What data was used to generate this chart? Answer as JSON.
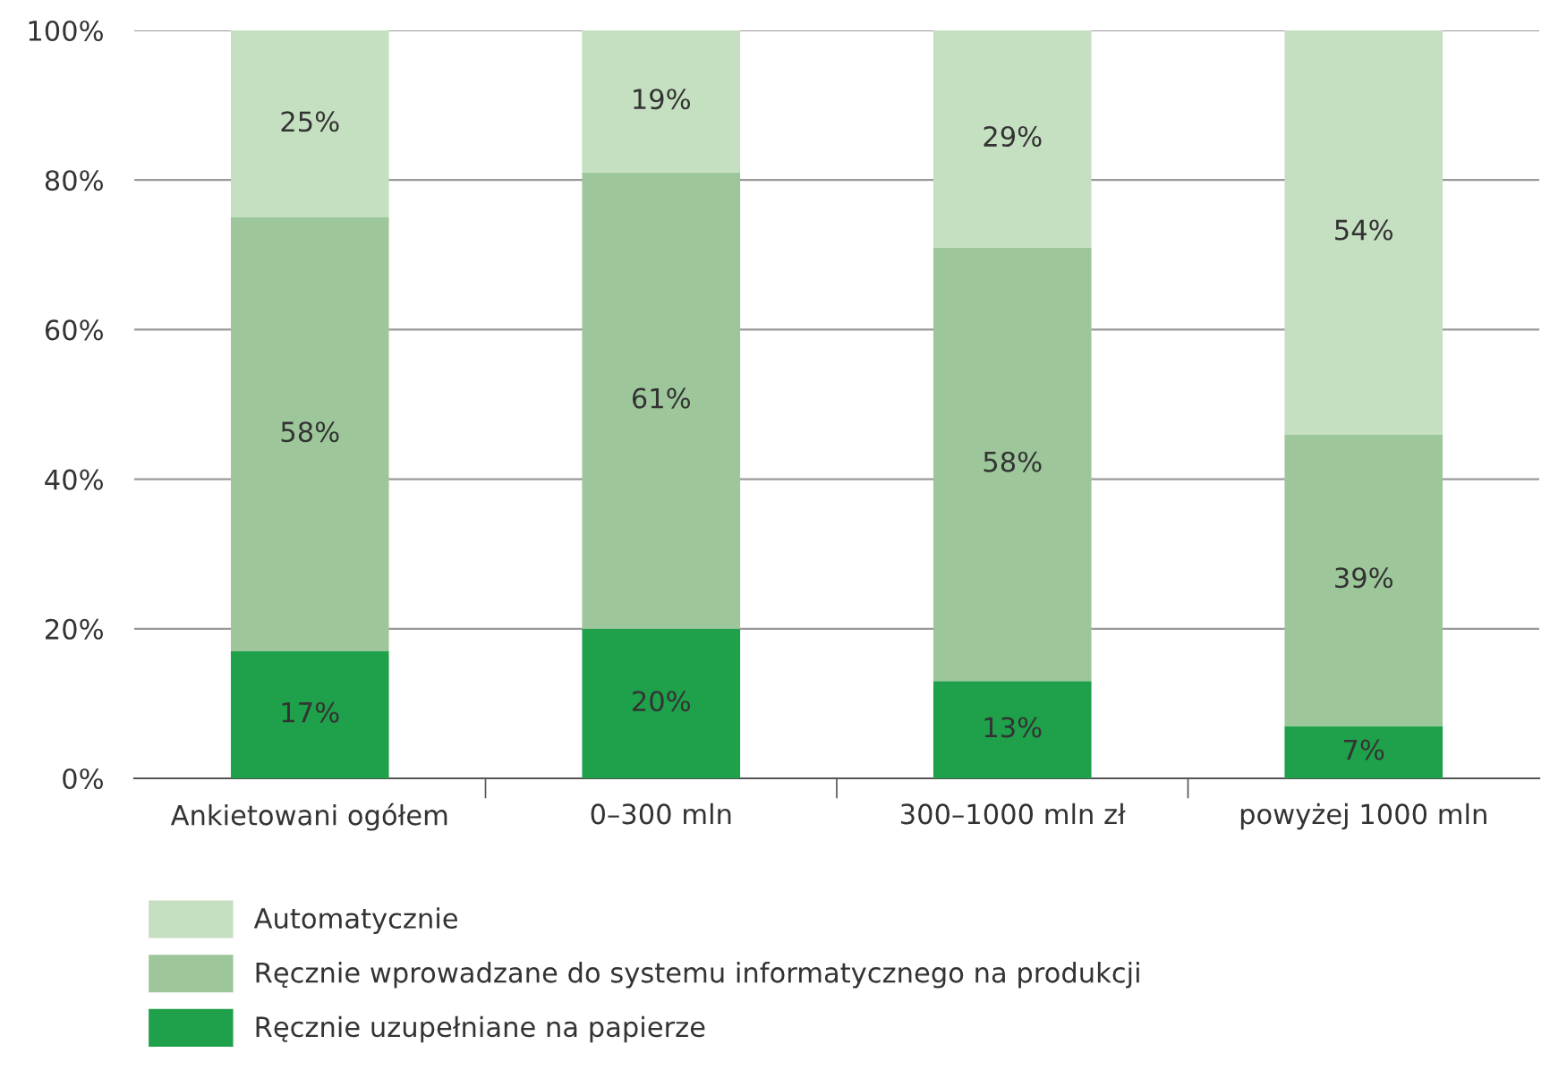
{
  "chart_data": {
    "type": "bar",
    "stacked": true,
    "categories": [
      "Ankietowani ogółem",
      "0–300 mln",
      "300–1000 mln zł",
      "powyżej 1000 mln"
    ],
    "series": [
      {
        "name": "Ręcznie uzupełniane na papierze",
        "color": "#1fa04a",
        "values": [
          17,
          20,
          13,
          7
        ],
        "value_labels": [
          "17%",
          "20%",
          "13%",
          "7%"
        ]
      },
      {
        "name": "Ręcznie wprowadzane do systemu informatycznego na produkcji",
        "color": "#9dc79a",
        "values": [
          58,
          61,
          58,
          39
        ],
        "value_labels": [
          "58%",
          "61%",
          "58%",
          "39%"
        ]
      },
      {
        "name": "Automatycznie",
        "color": "#c5e0c0",
        "values": [
          25,
          19,
          29,
          54
        ],
        "value_labels": [
          "25%",
          "19%",
          "29%",
          "54%"
        ]
      }
    ],
    "ylim": [
      0,
      100
    ],
    "yticks": [
      {
        "value": 0,
        "label": "0%"
      },
      {
        "value": 20,
        "label": "20%"
      },
      {
        "value": 40,
        "label": "40%"
      },
      {
        "value": 60,
        "label": "60%"
      },
      {
        "value": 80,
        "label": "80%"
      },
      {
        "value": 100,
        "label": "100%"
      }
    ],
    "grid": "y",
    "legend": "bottom"
  }
}
